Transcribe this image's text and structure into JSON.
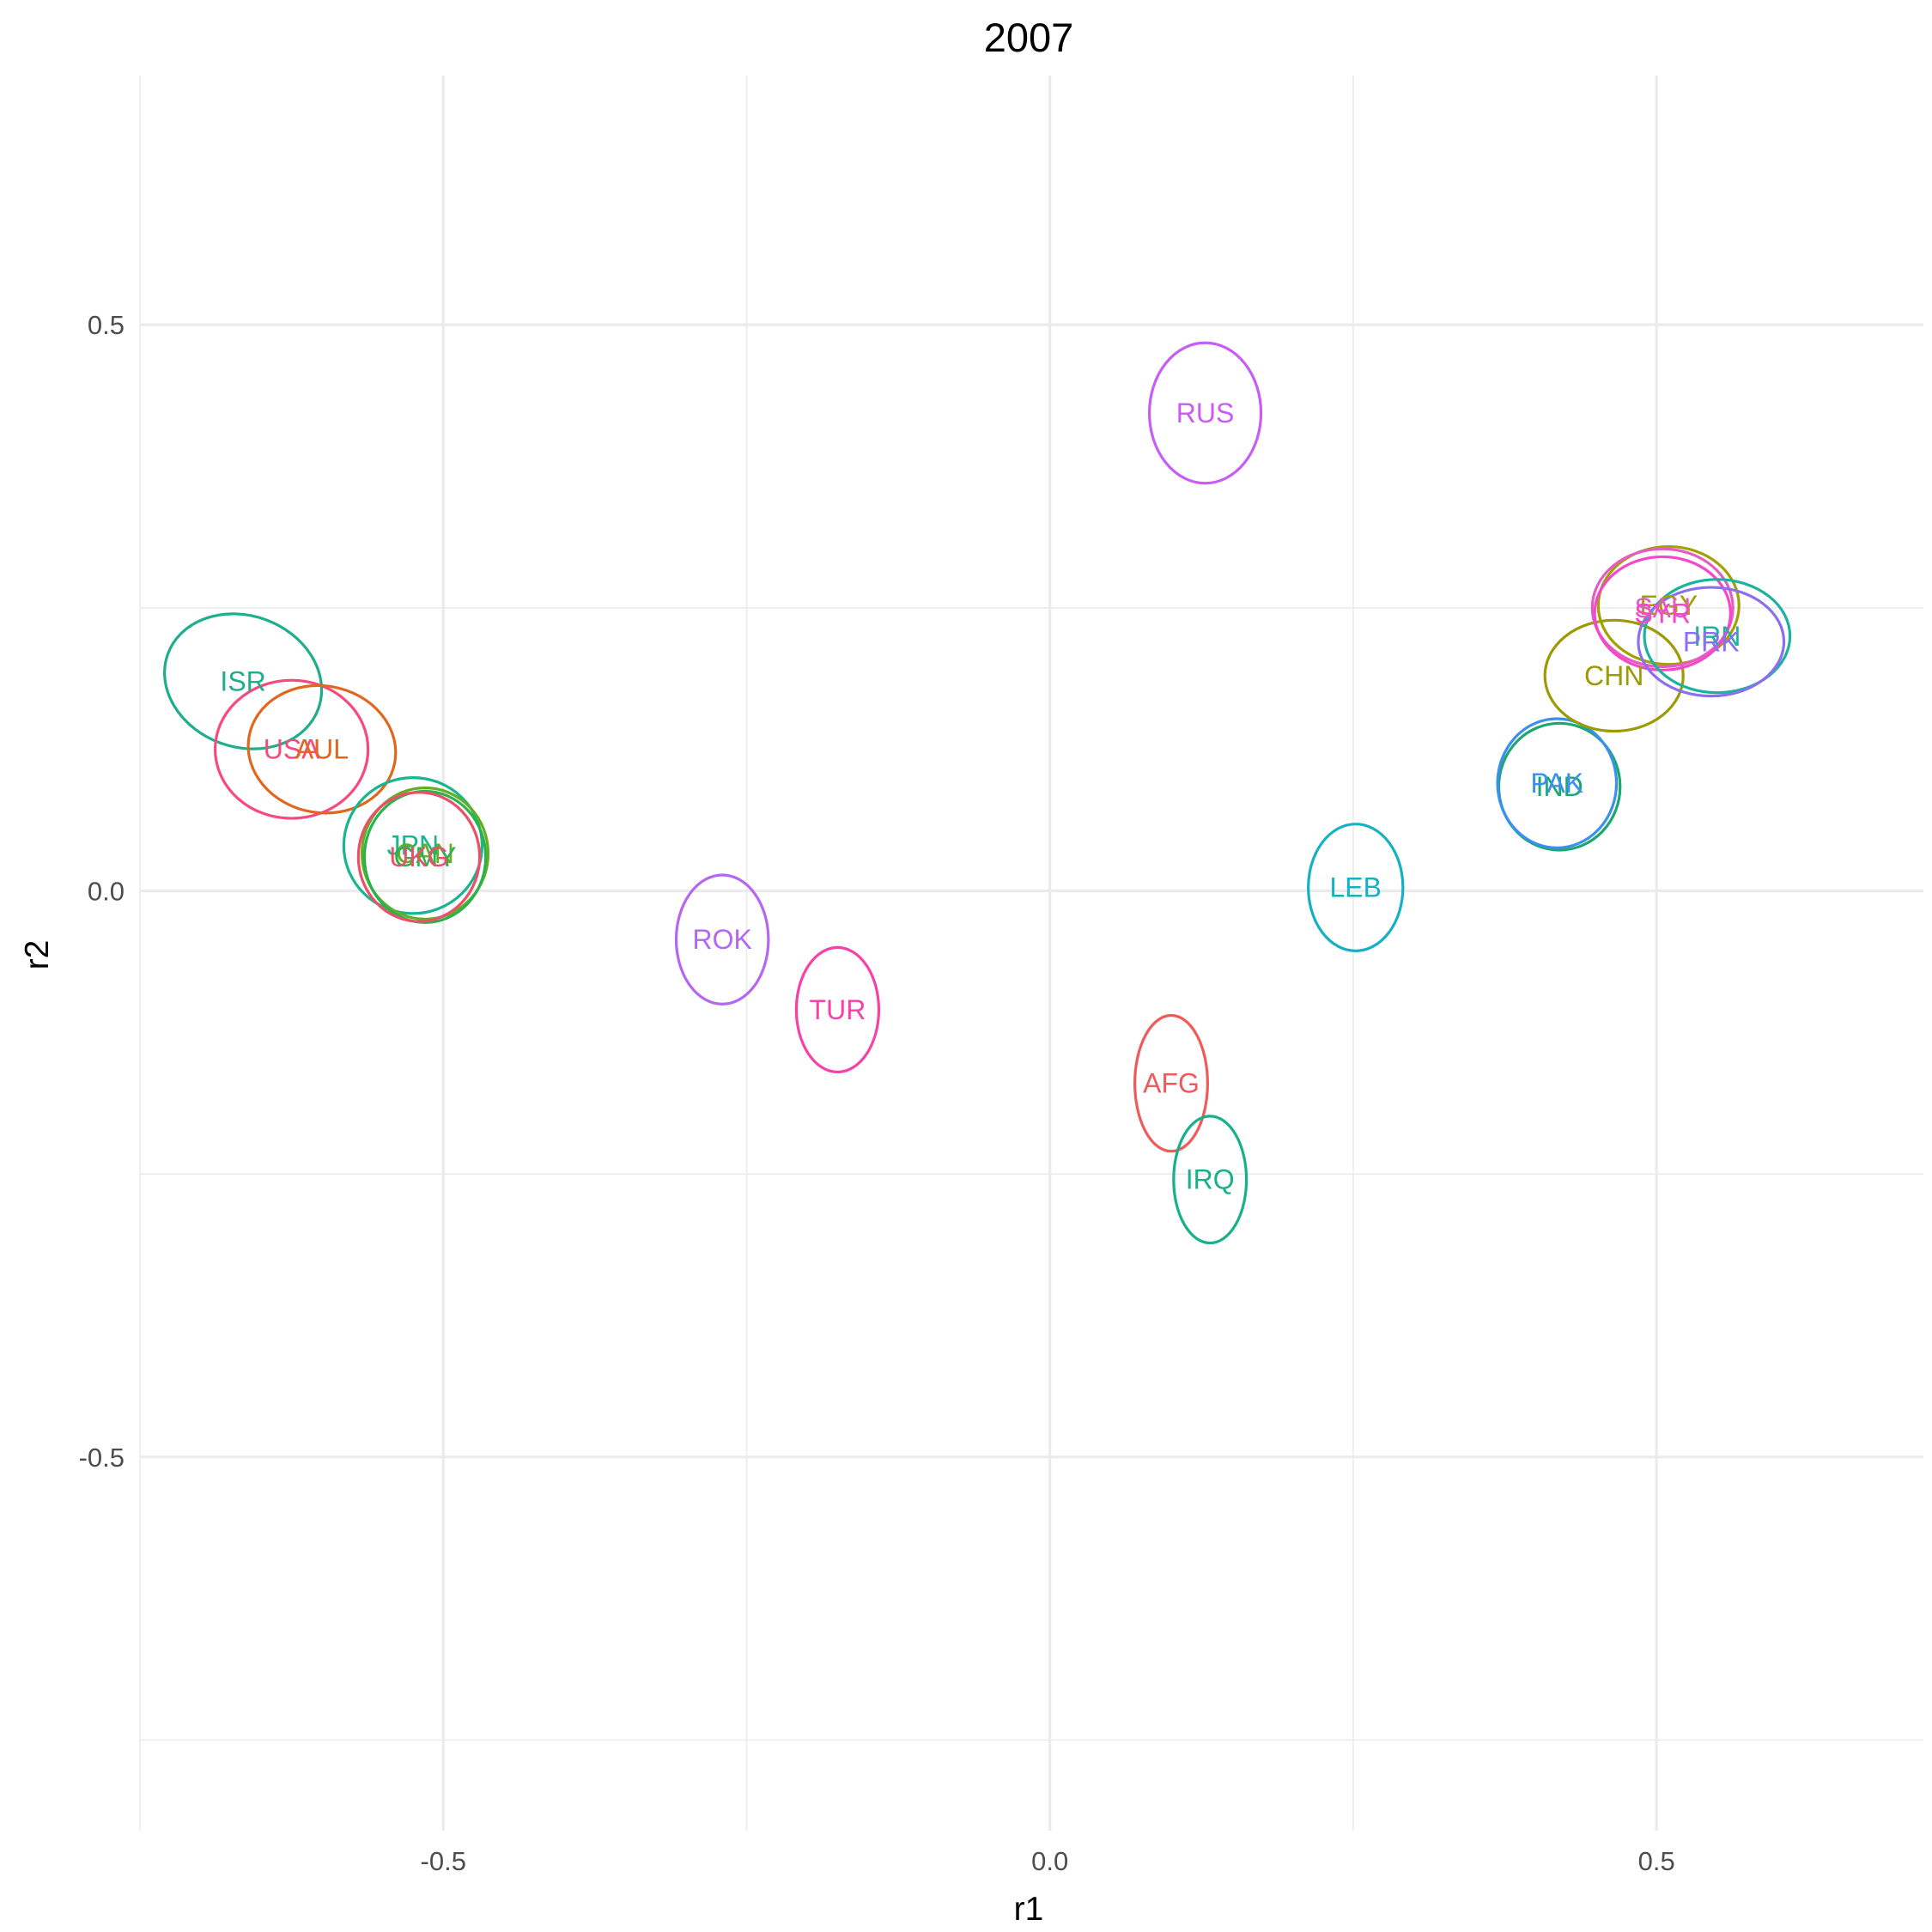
{
  "chart_data": {
    "type": "scatter",
    "title": "2007",
    "xlabel": "r1",
    "ylabel": "r2",
    "xlim": [
      -0.75,
      0.72
    ],
    "ylim": [
      -0.83,
      0.72
    ],
    "x_ticks": [
      -0.5,
      0.0,
      0.5
    ],
    "y_ticks": [
      -0.5,
      0.0,
      0.5
    ],
    "x_tick_labels": [
      "-0.5",
      "0.0",
      "0.5"
    ],
    "y_tick_labels": [
      "-0.5",
      "0.0",
      "0.5"
    ],
    "x_minor_ticks": [
      -0.75,
      -0.25,
      0.25
    ],
    "y_minor_ticks": [
      -0.75,
      -0.25,
      0.25
    ],
    "grid": true,
    "legend": "none",
    "points": [
      {
        "label": "ISR",
        "x": -0.665,
        "y": 0.185,
        "rx": 0.066,
        "ry": 0.058,
        "rotate": 20,
        "color": "#1fad8c"
      },
      {
        "label": "USA",
        "x": -0.625,
        "y": 0.125,
        "rx": 0.063,
        "ry": 0.061,
        "rotate": 0,
        "color": "#f8497d"
      },
      {
        "label": "AUL",
        "x": -0.6,
        "y": 0.125,
        "rx": 0.061,
        "ry": 0.056,
        "rotate": 10,
        "color": "#e0681e"
      },
      {
        "label": "JPN",
        "x": -0.525,
        "y": 0.04,
        "rx": 0.057,
        "ry": 0.06,
        "rotate": 0,
        "color": "#18b58f"
      },
      {
        "label": "CAN",
        "x": -0.515,
        "y": 0.033,
        "rx": 0.052,
        "ry": 0.058,
        "rotate": 0,
        "color": "#62b021"
      },
      {
        "label": "GMY",
        "x": -0.515,
        "y": 0.03,
        "rx": 0.05,
        "ry": 0.058,
        "rotate": 0,
        "color": "#2bb24e"
      },
      {
        "label": "UKG",
        "x": -0.52,
        "y": 0.03,
        "rx": 0.05,
        "ry": 0.057,
        "rotate": 0,
        "color": "#ed4f68"
      },
      {
        "label": "RUS",
        "x": 0.128,
        "y": 0.422,
        "rx": 0.046,
        "ry": 0.062,
        "rotate": 0,
        "color": "#c75cf6"
      },
      {
        "label": "ROK",
        "x": -0.27,
        "y": -0.043,
        "rx": 0.038,
        "ry": 0.057,
        "rotate": 0,
        "color": "#b566f2"
      },
      {
        "label": "TUR",
        "x": -0.175,
        "y": -0.105,
        "rx": 0.034,
        "ry": 0.055,
        "rotate": 0,
        "color": "#f641a6"
      },
      {
        "label": "AFG",
        "x": 0.1,
        "y": -0.17,
        "rx": 0.03,
        "ry": 0.06,
        "rotate": 0,
        "color": "#ef5a5a"
      },
      {
        "label": "IRQ",
        "x": 0.132,
        "y": -0.255,
        "rx": 0.03,
        "ry": 0.056,
        "rotate": 0,
        "color": "#16b08a"
      },
      {
        "label": "LEB",
        "x": 0.252,
        "y": 0.003,
        "rx": 0.039,
        "ry": 0.056,
        "rotate": 0,
        "color": "#14b1c5"
      },
      {
        "label": "IND",
        "x": 0.42,
        "y": 0.092,
        "rx": 0.05,
        "ry": 0.056,
        "rotate": 0,
        "color": "#1aa86f"
      },
      {
        "label": "PAK",
        "x": 0.418,
        "y": 0.095,
        "rx": 0.049,
        "ry": 0.057,
        "rotate": 0,
        "color": "#3a8ff0"
      },
      {
        "label": "CHN",
        "x": 0.465,
        "y": 0.19,
        "rx": 0.057,
        "ry": 0.049,
        "rotate": 0,
        "color": "#9c9a06"
      },
      {
        "label": "EGY",
        "x": 0.51,
        "y": 0.252,
        "rx": 0.058,
        "ry": 0.052,
        "rotate": 0,
        "color": "#a2a100"
      },
      {
        "label": "SAU",
        "x": 0.505,
        "y": 0.25,
        "rx": 0.058,
        "ry": 0.052,
        "rotate": 0,
        "color": "#e45cc4"
      },
      {
        "label": "SYR",
        "x": 0.505,
        "y": 0.245,
        "rx": 0.056,
        "ry": 0.05,
        "rotate": 0,
        "color": "#f448c9"
      },
      {
        "label": "IRN",
        "x": 0.55,
        "y": 0.225,
        "rx": 0.06,
        "ry": 0.05,
        "rotate": 0,
        "color": "#1eb19e"
      },
      {
        "label": "PRK",
        "x": 0.545,
        "y": 0.22,
        "rx": 0.06,
        "ry": 0.048,
        "rotate": 0,
        "color": "#8a6ff0"
      }
    ]
  }
}
